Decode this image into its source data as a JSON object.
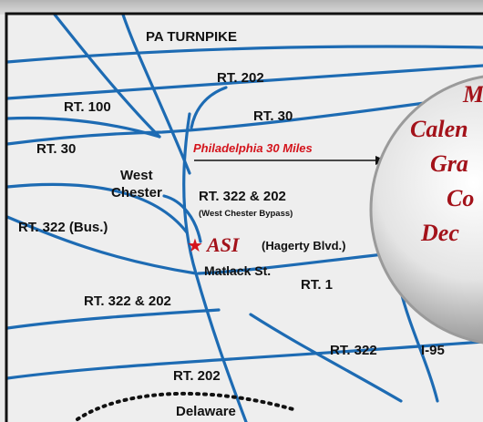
{
  "map": {
    "roads": {
      "pa_turnpike": "PA TURNPIKE",
      "rt202_top": "RT. 202",
      "rt100": "RT. 100",
      "rt30_mid": "RT. 30",
      "rt30_left": "RT. 30",
      "rt322_202": "RT. 322 & 202",
      "bypass": "(West Chester Bypass)",
      "rt322_bus": "RT. 322 (Bus.)",
      "rt322_202_lower": "RT. 322 & 202",
      "rt1": "RT. 1",
      "rt322": "RT. 322",
      "i95": "I-95",
      "rt202_bottom": "RT. 202"
    },
    "places": {
      "west": "West",
      "chester": "Chester",
      "matlack": "Matlack St.",
      "delaware": "Delaware"
    },
    "direction": "Philadelphia 30 Miles",
    "asi": {
      "name": "ASI",
      "street": "(Hagerty Blvd.)"
    },
    "circle_lines": [
      "M",
      "Calen",
      "Gra",
      "Co",
      "Dec"
    ],
    "colors": {
      "road": "#1d6bb3",
      "accent_red": "#d4141c",
      "background": "#e9e9e9",
      "frame": "#111111"
    }
  }
}
